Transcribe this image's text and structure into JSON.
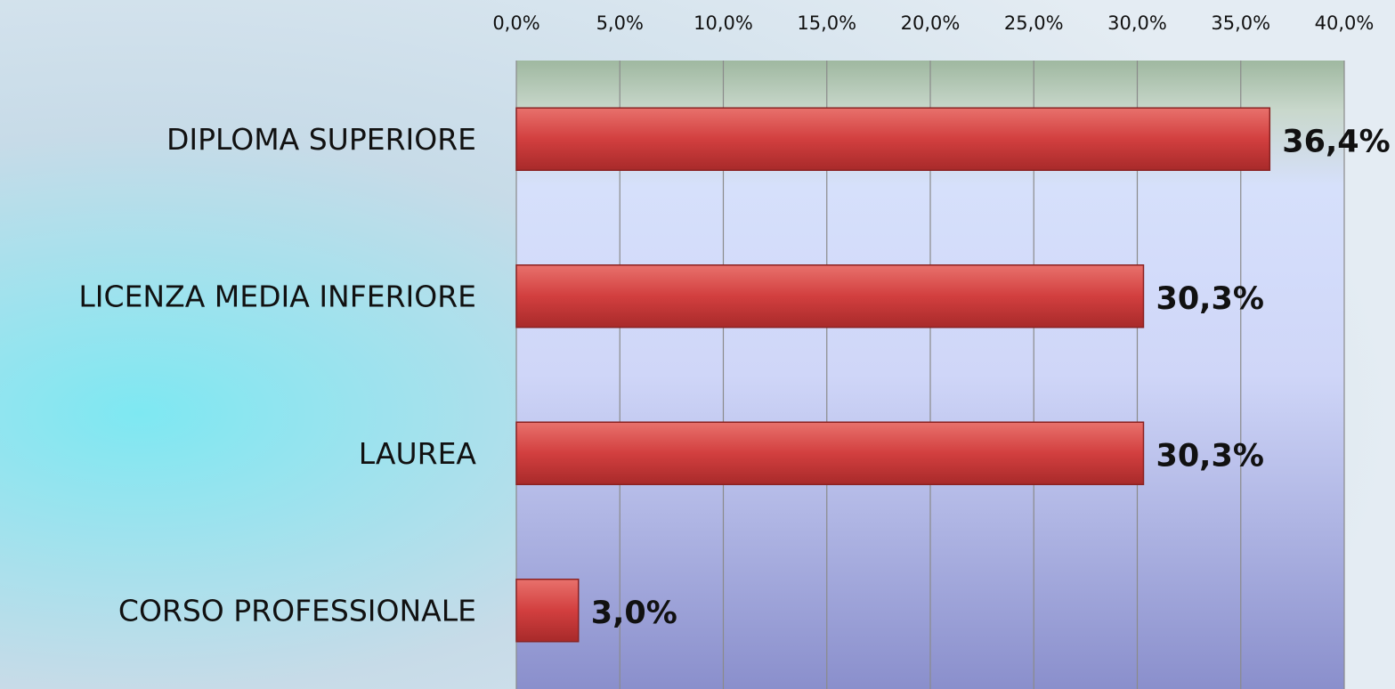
{
  "chart_data": {
    "type": "bar",
    "orientation": "horizontal",
    "categories": [
      "DIPLOMA SUPERIORE",
      "LICENZA MEDIA INFERIORE",
      "LAUREA",
      "CORSO PROFESSIONALE"
    ],
    "values": [
      36.4,
      30.3,
      30.3,
      3.0
    ],
    "value_labels": [
      "36,4%",
      "30,3%",
      "30,3%",
      "3,0%"
    ],
    "color": "#d23f3f",
    "xlim": [
      0,
      40
    ],
    "xticks": [
      {
        "value": 0,
        "label": "0,0%"
      },
      {
        "value": 5,
        "label": "5,0%"
      },
      {
        "value": 10,
        "label": "10,0%"
      },
      {
        "value": 15,
        "label": "15,0%"
      },
      {
        "value": 20,
        "label": "20,0%"
      },
      {
        "value": 25,
        "label": "25,0%"
      },
      {
        "value": 30,
        "label": "30,0%"
      },
      {
        "value": 35,
        "label": "35,0%"
      },
      {
        "value": 40,
        "label": "40,0%"
      }
    ],
    "grid": true
  }
}
